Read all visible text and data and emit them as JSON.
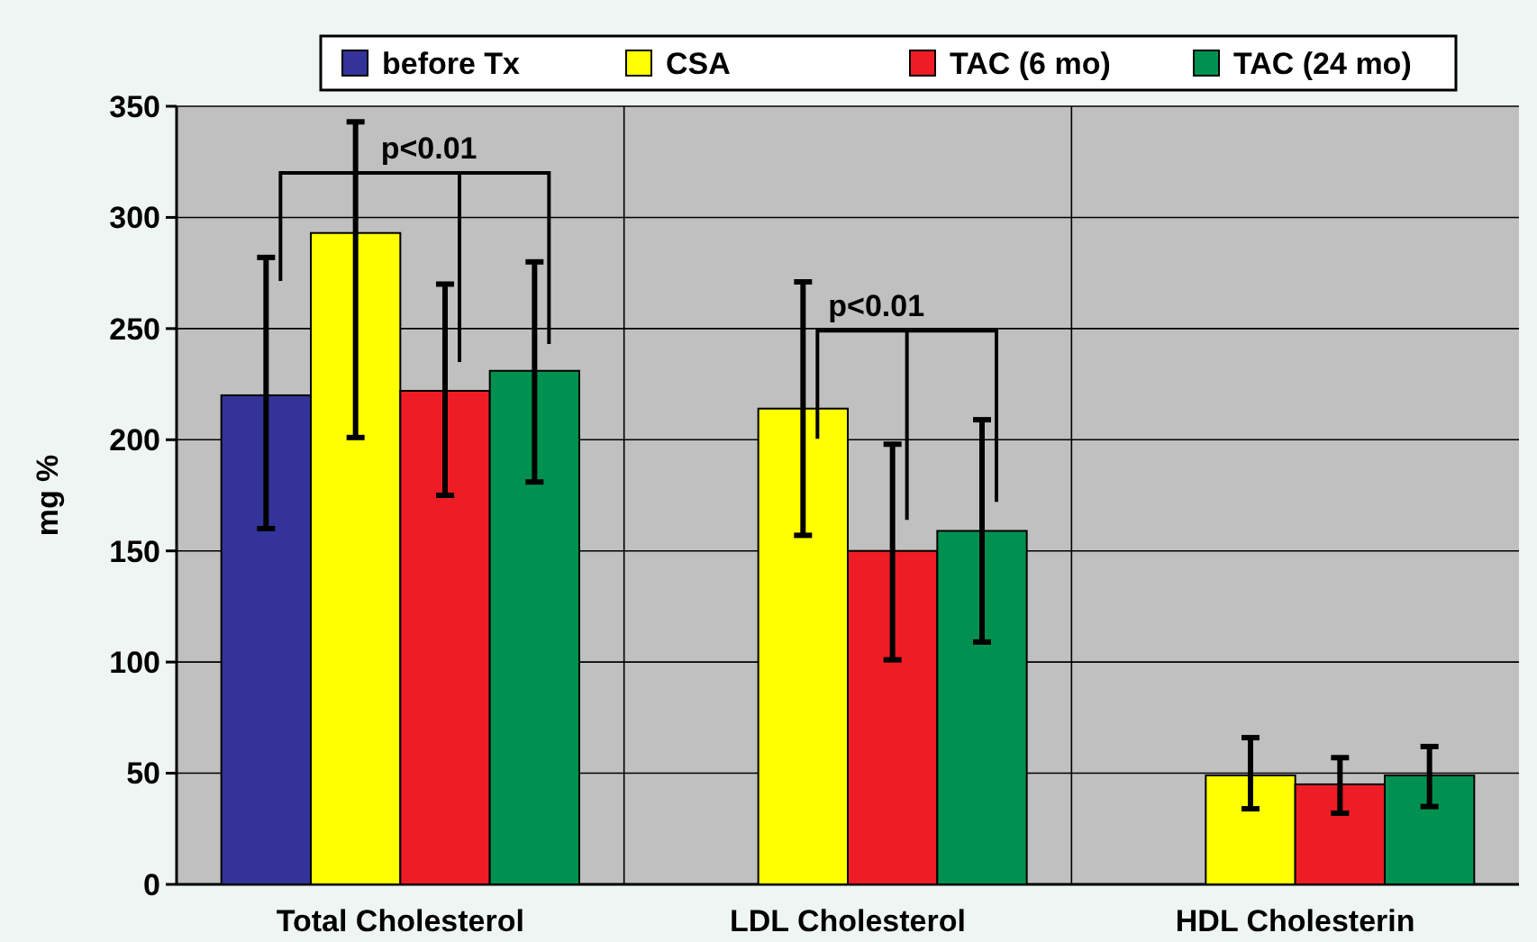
{
  "chart_data": {
    "type": "bar",
    "ylabel": "mg %",
    "categories": [
      "Total Cholesterol",
      "LDL Cholesterol",
      "HDL Cholesterin"
    ],
    "series": [
      {
        "name": "before Tx",
        "color": "#333399",
        "values": [
          220,
          null,
          null
        ],
        "errors": [
          [
            160,
            282
          ],
          null,
          null
        ]
      },
      {
        "name": "CSA",
        "color": "#ffff00",
        "values": [
          293,
          214,
          49
        ],
        "errors": [
          [
            201,
            343
          ],
          [
            157,
            271
          ],
          [
            34,
            66
          ]
        ]
      },
      {
        "name": "TAC (6 mo)",
        "color": "#ee1c25",
        "values": [
          222,
          150,
          45
        ],
        "errors": [
          [
            175,
            270
          ],
          [
            101,
            198
          ],
          [
            32,
            57
          ]
        ]
      },
      {
        "name": "TAC (24 mo)",
        "color": "#009150",
        "values": [
          231,
          159,
          49
        ],
        "errors": [
          [
            181,
            280
          ],
          [
            109,
            209
          ],
          [
            35,
            62
          ]
        ]
      }
    ],
    "ylim": [
      0,
      350
    ],
    "yticks": [
      0,
      50,
      100,
      150,
      200,
      250,
      300,
      350
    ],
    "grid": "y",
    "legend": "top",
    "annotations": [
      "p<0.01",
      "p<0.01"
    ]
  }
}
